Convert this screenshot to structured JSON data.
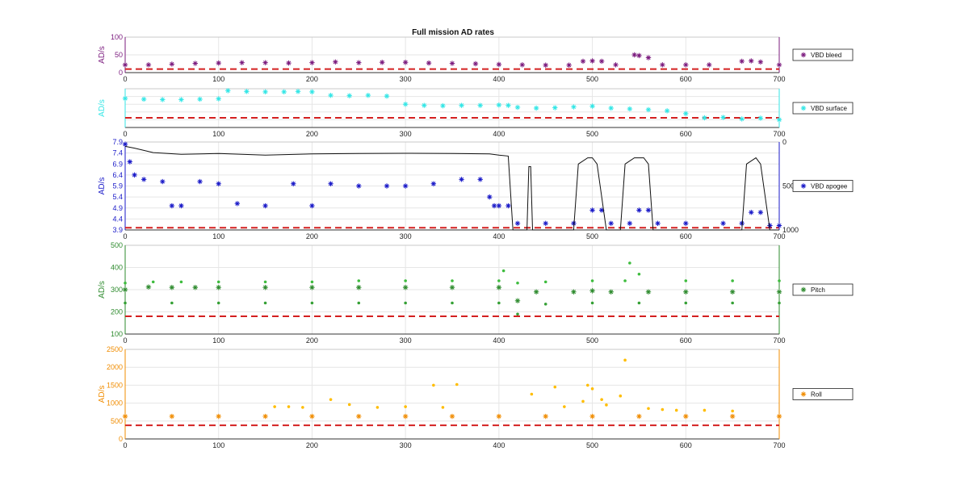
{
  "figure": {
    "title": "Full mission AD rates"
  },
  "chart_data": [
    {
      "type": "scatter",
      "ylabel": "AD/s",
      "xlim": [
        0,
        700
      ],
      "ylim": [
        0,
        100
      ],
      "xticks": [
        0,
        100,
        200,
        300,
        400,
        500,
        600,
        700
      ],
      "yticks": [
        0,
        50,
        100
      ],
      "grid": true,
      "legend_position": "right",
      "color": "#7b1b7e",
      "threshold": 10,
      "series": [
        {
          "name": "VBD bleed",
          "marker": "asterisk",
          "x": [
            0,
            25,
            50,
            75,
            100,
            125,
            150,
            175,
            200,
            225,
            250,
            275,
            300,
            325,
            350,
            375,
            400,
            425,
            450,
            475,
            490,
            500,
            510,
            525,
            545,
            550,
            560,
            575,
            600,
            625,
            660,
            670,
            680,
            700
          ],
          "y": [
            22,
            22,
            24,
            26,
            27,
            28,
            28,
            27,
            28,
            30,
            28,
            29,
            29,
            27,
            26,
            25,
            23,
            22,
            21,
            21,
            32,
            33,
            32,
            22,
            50,
            48,
            42,
            22,
            22,
            22,
            32,
            33,
            30,
            22
          ]
        }
      ]
    },
    {
      "type": "scatter",
      "ylabel": "AD/s",
      "xlim": [
        0,
        700
      ],
      "ylim": [
        0,
        100
      ],
      "xticks": [
        0,
        100,
        200,
        300,
        400,
        500,
        600,
        700
      ],
      "yticks": [],
      "grid": true,
      "legend_position": "right",
      "color": "#33e6e6",
      "threshold": 25,
      "series": [
        {
          "name": "VBD surface",
          "marker": "asterisk",
          "x": [
            0,
            20,
            40,
            60,
            80,
            100,
            110,
            130,
            150,
            170,
            185,
            200,
            220,
            240,
            260,
            280,
            300,
            320,
            340,
            360,
            380,
            400,
            410,
            420,
            440,
            460,
            480,
            500,
            520,
            540,
            560,
            580,
            600,
            620,
            640,
            660,
            680,
            700
          ],
          "y": [
            75,
            73,
            72,
            72,
            73,
            74,
            95,
            93,
            92,
            92,
            93,
            92,
            83,
            82,
            83,
            81,
            60,
            57,
            56,
            57,
            57,
            58,
            57,
            52,
            50,
            51,
            53,
            55,
            50,
            48,
            46,
            43,
            36,
            25,
            26,
            22,
            24,
            20
          ]
        }
      ]
    },
    {
      "type": "line",
      "ylabel": "AD/s",
      "xlim": [
        0,
        700
      ],
      "ylim": [
        3.9,
        7.9
      ],
      "xticks": [
        0,
        100,
        200,
        300,
        400,
        500,
        600,
        700
      ],
      "yticks": [
        3.9,
        4.4,
        4.9,
        5.4,
        5.9,
        6.4,
        6.9,
        7.4,
        7.9
      ],
      "y2ticks": [
        0,
        500,
        1000
      ],
      "y2lim": [
        0,
        1000
      ],
      "grid": true,
      "legend_position": "right",
      "color": "#1a1ac8",
      "threshold": 4.0,
      "series": [
        {
          "name": "VBD apogee",
          "marker": "asterisk",
          "x": [
            0,
            5,
            10,
            20,
            40,
            50,
            60,
            80,
            100,
            120,
            150,
            180,
            200,
            220,
            250,
            280,
            300,
            330,
            360,
            380,
            390,
            395,
            400,
            410,
            420,
            450,
            480,
            500,
            510,
            520,
            540,
            550,
            560,
            570,
            600,
            640,
            660,
            670,
            680,
            690,
            700
          ],
          "y": [
            7.8,
            7.0,
            6.4,
            6.2,
            6.1,
            5.0,
            5.0,
            6.1,
            6.0,
            5.1,
            5.0,
            6.0,
            5.0,
            6.0,
            5.9,
            5.9,
            5.9,
            6.0,
            6.2,
            6.2,
            5.4,
            5.0,
            5.0,
            5.0,
            4.2,
            4.2,
            4.2,
            4.8,
            4.8,
            4.2,
            4.2,
            4.8,
            4.8,
            4.2,
            4.2,
            4.2,
            4.2,
            4.7,
            4.7,
            4.1,
            4.1
          ]
        },
        {
          "name": "",
          "axis": "right",
          "x": [
            0,
            10,
            30,
            60,
            100,
            150,
            200,
            250,
            300,
            350,
            390,
            400,
            410,
            415,
            430,
            432,
            434,
            436,
            440,
            480,
            485,
            495,
            500,
            505,
            515,
            530,
            535,
            545,
            555,
            560,
            565,
            580,
            620,
            660,
            665,
            675,
            680,
            690,
            700
          ],
          "y": [
            50,
            70,
            120,
            140,
            130,
            150,
            135,
            130,
            128,
            130,
            135,
            150,
            160,
            1000,
            1000,
            280,
            280,
            1000,
            1000,
            1000,
            250,
            180,
            180,
            250,
            1000,
            1000,
            250,
            180,
            180,
            250,
            1000,
            1000,
            1000,
            1000,
            250,
            180,
            250,
            1000,
            1000
          ]
        }
      ]
    },
    {
      "type": "scatter",
      "ylabel": "AD/s",
      "xlim": [
        0,
        700
      ],
      "ylim": [
        100,
        500
      ],
      "xticks": [
        0,
        100,
        200,
        300,
        400,
        500,
        600,
        700
      ],
      "yticks": [
        100,
        200,
        300,
        400,
        500
      ],
      "grid": true,
      "legend_position": "right",
      "color": "#2e8b2e",
      "threshold": 180,
      "series": [
        {
          "name": "Pitch",
          "marker": "asterisk",
          "x": [
            0,
            25,
            50,
            75,
            100,
            150,
            200,
            250,
            300,
            350,
            400,
            420,
            440,
            480,
            500,
            520,
            560,
            600,
            650,
            700
          ],
          "y": [
            300,
            312,
            310,
            310,
            310,
            310,
            310,
            310,
            310,
            310,
            310,
            250,
            290,
            290,
            295,
            290,
            290,
            290,
            290,
            290
          ]
        },
        {
          "name": "",
          "marker": "dot",
          "x": [
            0,
            30,
            60,
            100,
            150,
            200,
            250,
            300,
            350,
            400,
            405,
            420,
            450,
            500,
            535,
            540,
            550,
            600,
            650,
            700
          ],
          "y": [
            330,
            335,
            335,
            335,
            335,
            335,
            340,
            340,
            340,
            340,
            385,
            330,
            335,
            340,
            340,
            420,
            370,
            340,
            340,
            340
          ]
        },
        {
          "name": "",
          "marker": "dot",
          "x": [
            0,
            50,
            100,
            150,
            200,
            250,
            300,
            350,
            400,
            420,
            450,
            500,
            550,
            600,
            650,
            700
          ],
          "y": [
            240,
            240,
            240,
            240,
            240,
            240,
            240,
            240,
            240,
            190,
            235,
            240,
            240,
            240,
            240,
            240
          ]
        }
      ]
    },
    {
      "type": "scatter",
      "ylabel": "AD/s",
      "xlim": [
        0,
        700
      ],
      "ylim": [
        0,
        2500
      ],
      "xticks": [
        0,
        100,
        200,
        300,
        400,
        500,
        600,
        700
      ],
      "yticks": [
        0,
        500,
        1000,
        1500,
        2000,
        2500
      ],
      "grid": true,
      "legend_position": "right",
      "color": "#f08c00",
      "threshold": 380,
      "series": [
        {
          "name": "Roll",
          "marker": "asterisk",
          "x": [
            0,
            50,
            100,
            150,
            200,
            250,
            300,
            350,
            400,
            450,
            500,
            550,
            600,
            650,
            700
          ],
          "y": [
            630,
            630,
            630,
            630,
            630,
            630,
            630,
            630,
            630,
            630,
            630,
            630,
            630,
            630,
            630
          ]
        },
        {
          "name": "",
          "marker": "dot",
          "x": [
            160,
            175,
            190,
            220,
            240,
            270,
            300,
            330,
            340,
            355,
            435,
            460,
            470,
            490,
            495,
            500,
            510,
            515,
            530,
            535,
            560,
            575,
            590,
            620,
            650
          ],
          "y": [
            900,
            900,
            880,
            1100,
            960,
            880,
            900,
            1500,
            880,
            1520,
            1250,
            1450,
            900,
            1050,
            1500,
            1400,
            1100,
            950,
            1200,
            2200,
            850,
            820,
            800,
            800,
            780
          ]
        }
      ]
    }
  ]
}
